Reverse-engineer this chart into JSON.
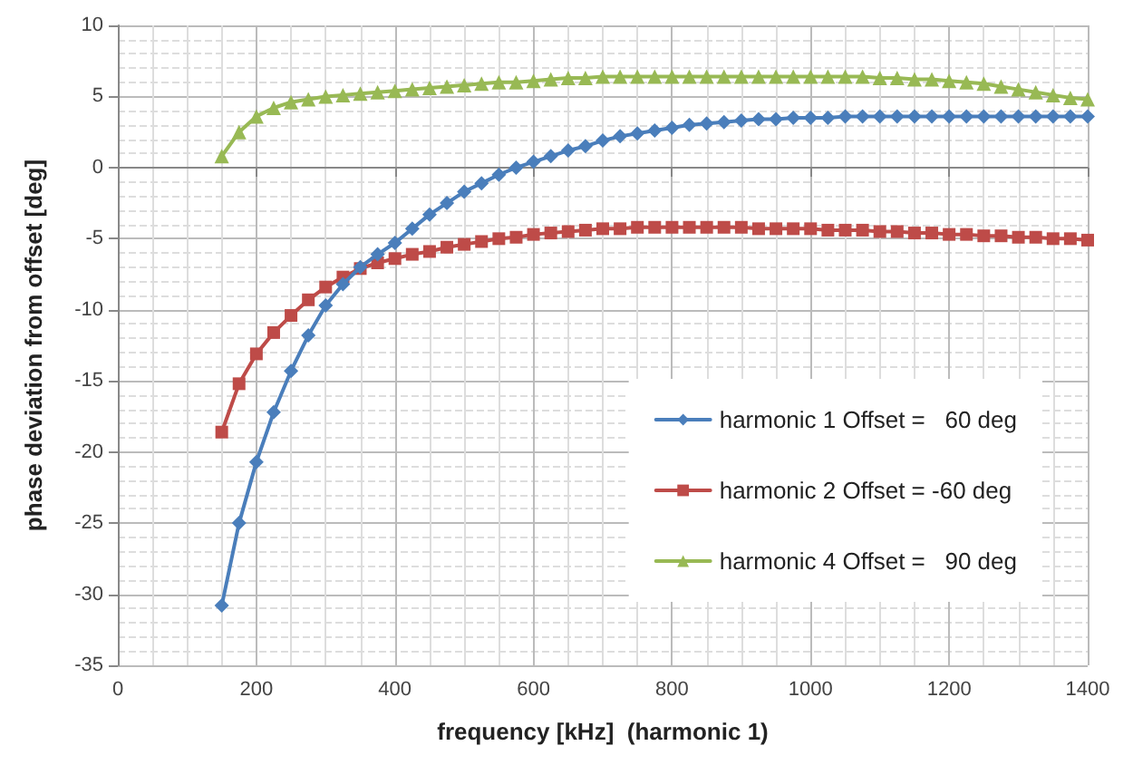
{
  "chart_data": {
    "type": "line",
    "xlabel": "frequency [kHz]  (harmonic 1)",
    "ylabel": "phase deviation from offset [deg]",
    "x": [
      150,
      175,
      200,
      225,
      250,
      275,
      300,
      325,
      350,
      375,
      400,
      425,
      450,
      475,
      500,
      525,
      550,
      575,
      600,
      625,
      650,
      675,
      700,
      725,
      750,
      775,
      800,
      825,
      850,
      875,
      900,
      925,
      950,
      975,
      1000,
      1025,
      1050,
      1075,
      1100,
      1125,
      1150,
      1175,
      1200,
      1225,
      1250,
      1275,
      1300,
      1325,
      1350,
      1375,
      1400
    ],
    "series": [
      {
        "name": "harmonic 1 Offset =   60 deg",
        "color": "#4a7ebb",
        "marker": "diamond",
        "values": [
          -30.8,
          -25.0,
          -20.7,
          -17.2,
          -14.3,
          -11.8,
          -9.7,
          -8.2,
          -7.0,
          -6.1,
          -5.3,
          -4.3,
          -3.3,
          -2.5,
          -1.7,
          -1.1,
          -0.5,
          0.0,
          0.4,
          0.8,
          1.2,
          1.5,
          1.9,
          2.2,
          2.4,
          2.6,
          2.8,
          3.0,
          3.1,
          3.2,
          3.3,
          3.4,
          3.4,
          3.5,
          3.5,
          3.5,
          3.6,
          3.6,
          3.6,
          3.6,
          3.6,
          3.6,
          3.6,
          3.6,
          3.6,
          3.6,
          3.6,
          3.6,
          3.6,
          3.6,
          3.6
        ]
      },
      {
        "name": "harmonic 2 Offset = -60 deg",
        "color": "#be4b48",
        "marker": "square",
        "values": [
          -18.6,
          -15.2,
          -13.1,
          -11.6,
          -10.4,
          -9.3,
          -8.4,
          -7.7,
          -7.1,
          -6.7,
          -6.4,
          -6.1,
          -5.9,
          -5.6,
          -5.4,
          -5.2,
          -5.0,
          -4.9,
          -4.7,
          -4.6,
          -4.5,
          -4.4,
          -4.3,
          -4.3,
          -4.2,
          -4.2,
          -4.2,
          -4.2,
          -4.2,
          -4.2,
          -4.2,
          -4.3,
          -4.3,
          -4.3,
          -4.3,
          -4.4,
          -4.4,
          -4.4,
          -4.5,
          -4.5,
          -4.6,
          -4.6,
          -4.7,
          -4.7,
          -4.8,
          -4.8,
          -4.9,
          -4.9,
          -5.0,
          -5.0,
          -5.1
        ]
      },
      {
        "name": "harmonic 4 Offset =   90 deg",
        "color": "#98b954",
        "marker": "triangle",
        "values": [
          0.8,
          2.5,
          3.6,
          4.2,
          4.6,
          4.8,
          5.0,
          5.1,
          5.2,
          5.3,
          5.4,
          5.5,
          5.6,
          5.7,
          5.8,
          5.9,
          6.0,
          6.0,
          6.1,
          6.2,
          6.3,
          6.3,
          6.4,
          6.4,
          6.4,
          6.4,
          6.4,
          6.4,
          6.4,
          6.4,
          6.4,
          6.4,
          6.4,
          6.4,
          6.4,
          6.4,
          6.4,
          6.4,
          6.3,
          6.3,
          6.2,
          6.2,
          6.1,
          6.0,
          5.9,
          5.7,
          5.5,
          5.3,
          5.1,
          4.9,
          4.8
        ]
      }
    ],
    "xlim": [
      0,
      1400
    ],
    "xticks": [
      0,
      200,
      400,
      600,
      800,
      1000,
      1200,
      1400
    ],
    "ylim": [
      -35,
      10
    ],
    "yticks": [
      -35,
      -30,
      -25,
      -20,
      -15,
      -10,
      -5,
      0,
      5,
      10
    ],
    "grid": true,
    "legend": "bottom right",
    "line_style": "solid"
  }
}
